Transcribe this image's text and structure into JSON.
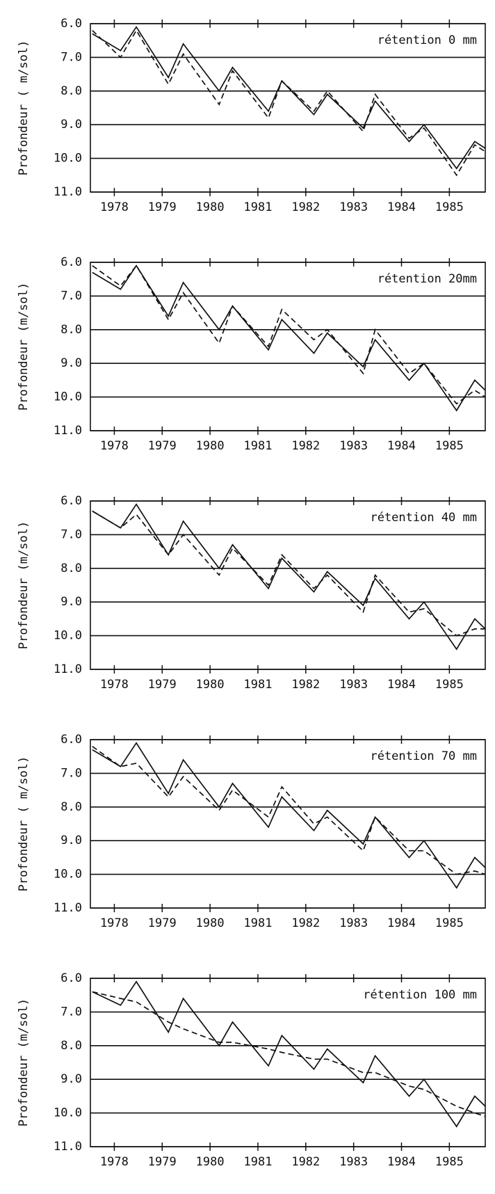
{
  "chart_data": [
    {
      "type": "line",
      "title": "rétention 0 mm",
      "ylabel": "Profondeur ( m/sol)",
      "x": [
        1978.04,
        1978.63,
        1978.96,
        1979.63,
        1979.94,
        1980.69,
        1980.97,
        1981.72,
        1982.0,
        1982.67,
        1982.95,
        1983.7,
        1983.95,
        1984.66,
        1984.97,
        1985.65,
        1986.03,
        1986.25
      ],
      "series": [
        {
          "color": "#111111",
          "dash": "solid",
          "values": [
            6.3,
            6.8,
            6.1,
            7.6,
            6.6,
            8.0,
            7.3,
            8.6,
            7.7,
            8.7,
            8.1,
            9.1,
            8.3,
            9.5,
            9.0,
            10.3,
            9.5,
            9.7
          ]
        },
        {
          "color": "#111111",
          "dash": "dashed",
          "values": [
            6.2,
            7.0,
            6.2,
            7.8,
            6.9,
            8.4,
            7.4,
            8.8,
            7.7,
            8.6,
            8.0,
            9.2,
            8.1,
            9.4,
            9.1,
            10.5,
            9.6,
            9.8
          ]
        }
      ],
      "xlim": [
        1978.0,
        1986.25
      ],
      "xticks": [
        {
          "value": 1978.5,
          "label": "1978"
        },
        {
          "value": 1979.5,
          "label": "1979"
        },
        {
          "value": 1980.5,
          "label": "1980"
        },
        {
          "value": 1981.5,
          "label": "1981"
        },
        {
          "value": 1982.5,
          "label": "1982"
        },
        {
          "value": 1983.5,
          "label": "1983"
        },
        {
          "value": 1984.5,
          "label": "1984"
        },
        {
          "value": 1985.5,
          "label": "1985"
        }
      ],
      "ylim": [
        6,
        11
      ],
      "y_inverted": true,
      "yticks": [
        {
          "value": 6,
          "label": "6.0"
        },
        {
          "value": 7,
          "label": "7.0"
        },
        {
          "value": 8,
          "label": "8.0"
        },
        {
          "value": 9,
          "label": "9.0"
        },
        {
          "value": 10,
          "label": "10.0"
        },
        {
          "value": 11,
          "label": "11.0"
        }
      ],
      "grid": true
    },
    {
      "type": "line",
      "title": "rétention 20mm",
      "ylabel": "Profondeur (m/sol)",
      "x": [
        1978.04,
        1978.63,
        1978.96,
        1979.63,
        1979.94,
        1980.69,
        1980.97,
        1981.72,
        1982.0,
        1982.67,
        1982.95,
        1983.7,
        1983.95,
        1984.66,
        1984.97,
        1985.65,
        1986.03,
        1986.25
      ],
      "series": [
        {
          "color": "#111111",
          "dash": "solid",
          "values": [
            6.3,
            6.8,
            6.1,
            7.6,
            6.6,
            8.0,
            7.3,
            8.6,
            7.7,
            8.7,
            8.1,
            9.1,
            8.3,
            9.5,
            9.0,
            10.4,
            9.5,
            9.8
          ]
        },
        {
          "color": "#111111",
          "dash": "dashed",
          "values": [
            6.1,
            6.7,
            6.1,
            7.7,
            6.9,
            8.4,
            7.3,
            8.5,
            7.4,
            8.3,
            8.0,
            9.3,
            8.0,
            9.3,
            9.0,
            10.2,
            9.8,
            10.0
          ]
        }
      ],
      "xlim": [
        1978.0,
        1986.25
      ],
      "xticks": [
        {
          "value": 1978.5,
          "label": "1978"
        },
        {
          "value": 1979.5,
          "label": "1979"
        },
        {
          "value": 1980.5,
          "label": "1980"
        },
        {
          "value": 1981.5,
          "label": "1981"
        },
        {
          "value": 1982.5,
          "label": "1982"
        },
        {
          "value": 1983.5,
          "label": "1983"
        },
        {
          "value": 1984.5,
          "label": "1984"
        },
        {
          "value": 1985.5,
          "label": "1985"
        }
      ],
      "ylim": [
        6,
        11
      ],
      "y_inverted": true,
      "yticks": [
        {
          "value": 6,
          "label": "6.0"
        },
        {
          "value": 7,
          "label": "7.0"
        },
        {
          "value": 8,
          "label": "8.0"
        },
        {
          "value": 9,
          "label": "9.0"
        },
        {
          "value": 10,
          "label": "10.0"
        },
        {
          "value": 11,
          "label": "11.0"
        }
      ],
      "grid": true
    },
    {
      "type": "line",
      "title": "rétention 40 mm",
      "ylabel": "Profondeur (m/sol)",
      "x": [
        1978.04,
        1978.63,
        1978.96,
        1979.63,
        1979.94,
        1980.69,
        1980.97,
        1981.72,
        1982.0,
        1982.67,
        1982.95,
        1983.7,
        1983.95,
        1984.66,
        1984.97,
        1985.65,
        1986.03,
        1986.25
      ],
      "series": [
        {
          "color": "#111111",
          "dash": "solid",
          "values": [
            6.3,
            6.8,
            6.1,
            7.6,
            6.6,
            8.0,
            7.3,
            8.6,
            7.7,
            8.7,
            8.1,
            9.1,
            8.3,
            9.5,
            9.0,
            10.4,
            9.5,
            9.8
          ]
        },
        {
          "color": "#111111",
          "dash": "dashed",
          "values": [
            6.3,
            6.8,
            6.4,
            7.6,
            7.0,
            8.2,
            7.4,
            8.5,
            7.6,
            8.6,
            8.2,
            9.3,
            8.2,
            9.3,
            9.2,
            10.0,
            9.8,
            9.8
          ]
        }
      ],
      "xlim": [
        1978.0,
        1986.25
      ],
      "xticks": [
        {
          "value": 1978.5,
          "label": "1978"
        },
        {
          "value": 1979.5,
          "label": "1979"
        },
        {
          "value": 1980.5,
          "label": "1980"
        },
        {
          "value": 1981.5,
          "label": "1981"
        },
        {
          "value": 1982.5,
          "label": "1982"
        },
        {
          "value": 1983.5,
          "label": "1983"
        },
        {
          "value": 1984.5,
          "label": "1984"
        },
        {
          "value": 1985.5,
          "label": "1985"
        }
      ],
      "ylim": [
        6,
        11
      ],
      "y_inverted": true,
      "yticks": [
        {
          "value": 6,
          "label": "6.0"
        },
        {
          "value": 7,
          "label": "7.0"
        },
        {
          "value": 8,
          "label": "8.0"
        },
        {
          "value": 9,
          "label": "9.0"
        },
        {
          "value": 10,
          "label": "10.0"
        },
        {
          "value": 11,
          "label": "11.0"
        }
      ],
      "grid": true
    },
    {
      "type": "line",
      "title": "rétention 70 mm",
      "ylabel": "Profondeur ( m/sol)",
      "x": [
        1978.04,
        1978.63,
        1978.96,
        1979.63,
        1979.94,
        1980.69,
        1980.97,
        1981.72,
        1982.0,
        1982.67,
        1982.95,
        1983.7,
        1983.95,
        1984.66,
        1984.97,
        1985.65,
        1986.03,
        1986.25
      ],
      "series": [
        {
          "color": "#111111",
          "dash": "solid",
          "values": [
            6.3,
            6.8,
            6.1,
            7.6,
            6.6,
            8.0,
            7.3,
            8.6,
            7.7,
            8.7,
            8.1,
            9.1,
            8.3,
            9.5,
            9.0,
            10.4,
            9.5,
            9.8
          ]
        },
        {
          "color": "#111111",
          "dash": "dashed",
          "values": [
            6.2,
            6.8,
            6.7,
            7.7,
            7.1,
            8.1,
            7.5,
            8.3,
            7.4,
            8.5,
            8.3,
            9.3,
            8.3,
            9.3,
            9.3,
            10.0,
            9.9,
            10.0
          ]
        }
      ],
      "xlim": [
        1978.0,
        1986.25
      ],
      "xticks": [
        {
          "value": 1978.5,
          "label": "1978"
        },
        {
          "value": 1979.5,
          "label": "1979"
        },
        {
          "value": 1980.5,
          "label": "1980"
        },
        {
          "value": 1981.5,
          "label": "1981"
        },
        {
          "value": 1982.5,
          "label": "1982"
        },
        {
          "value": 1983.5,
          "label": "1983"
        },
        {
          "value": 1984.5,
          "label": "1984"
        },
        {
          "value": 1985.5,
          "label": "1985"
        }
      ],
      "ylim": [
        6,
        11
      ],
      "y_inverted": true,
      "yticks": [
        {
          "value": 6,
          "label": "6.0"
        },
        {
          "value": 7,
          "label": "7.0"
        },
        {
          "value": 8,
          "label": "8.0"
        },
        {
          "value": 9,
          "label": "9.0"
        },
        {
          "value": 10,
          "label": "10.0"
        },
        {
          "value": 11,
          "label": "11.0"
        }
      ],
      "grid": true
    },
    {
      "type": "line",
      "title": "rétention 100 mm",
      "ylabel": "Profondeur (m/sol)",
      "x": [
        1978.04,
        1978.63,
        1978.96,
        1979.63,
        1979.94,
        1980.69,
        1980.97,
        1981.72,
        1982.0,
        1982.67,
        1982.95,
        1983.7,
        1983.95,
        1984.66,
        1984.97,
        1985.65,
        1986.03,
        1986.25
      ],
      "series": [
        {
          "color": "#111111",
          "dash": "solid",
          "values": [
            6.4,
            6.8,
            6.1,
            7.6,
            6.6,
            8.0,
            7.3,
            8.6,
            7.7,
            8.7,
            8.1,
            9.1,
            8.3,
            9.5,
            9.0,
            10.4,
            9.5,
            9.8
          ]
        },
        {
          "color": "#111111",
          "dash": "dashed",
          "values": [
            6.4,
            6.6,
            6.7,
            7.3,
            7.5,
            7.9,
            7.9,
            8.1,
            8.2,
            8.4,
            8.4,
            8.8,
            8.8,
            9.2,
            9.3,
            9.8,
            10.0,
            10.1
          ]
        }
      ],
      "xlim": [
        1978.0,
        1986.25
      ],
      "xticks": [
        {
          "value": 1978.5,
          "label": "1978"
        },
        {
          "value": 1979.5,
          "label": "1979"
        },
        {
          "value": 1980.5,
          "label": "1980"
        },
        {
          "value": 1981.5,
          "label": "1981"
        },
        {
          "value": 1982.5,
          "label": "1982"
        },
        {
          "value": 1983.5,
          "label": "1983"
        },
        {
          "value": 1984.5,
          "label": "1984"
        },
        {
          "value": 1985.5,
          "label": "1985"
        }
      ],
      "ylim": [
        6,
        11
      ],
      "y_inverted": true,
      "yticks": [
        {
          "value": 6,
          "label": "6.0"
        },
        {
          "value": 7,
          "label": "7.0"
        },
        {
          "value": 8,
          "label": "8.0"
        },
        {
          "value": 9,
          "label": "9.0"
        },
        {
          "value": 10,
          "label": "10.0"
        },
        {
          "value": 11,
          "label": "11.0"
        }
      ],
      "grid": true
    }
  ]
}
